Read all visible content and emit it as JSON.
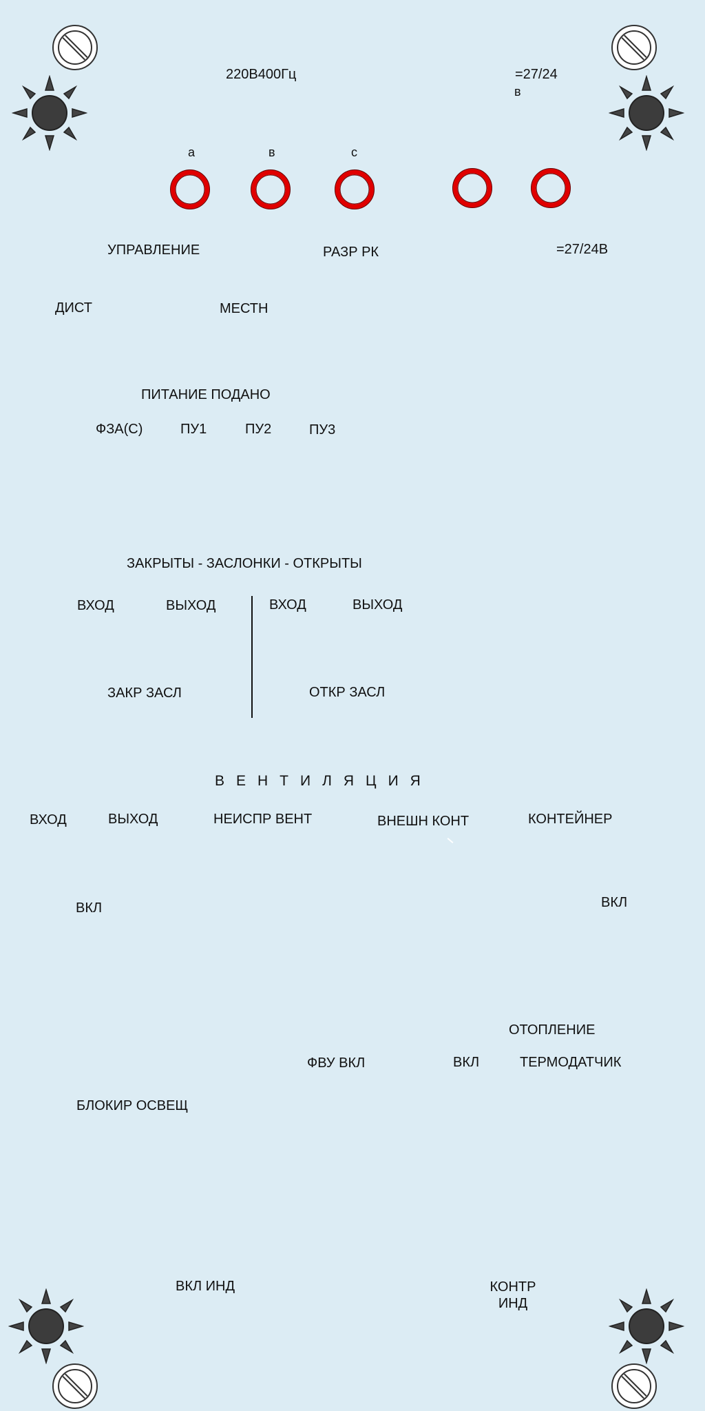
{
  "colors": {
    "background": "#dcecf4",
    "lamp_red": "#e00000",
    "knob_dark": "#3c3c3c",
    "knob_fill": "#444444"
  },
  "icons": {
    "corner_screw": "no-entry-screw-icon",
    "corner_knob": "sun-knob-icon",
    "lamp": "red-ring-lamp-icon"
  },
  "header": {
    "power_ac": "220В400Гц",
    "power_dc_top": "=27/24",
    "power_dc_unit": "в"
  },
  "phases": [
    "а",
    "в",
    "с"
  ],
  "row_labels": {
    "control": "УПРАВЛЕНИЕ",
    "rk_permission": "РАЗР РК",
    "dc_label": "=27/24В",
    "remote": "ДИСТ",
    "local": "МЕСТН"
  },
  "power": {
    "title": "ПИТАНИЕ ПОДАНО",
    "items": [
      "ФЗА(С)",
      "ПУ1",
      "ПУ2",
      "ПУ3"
    ]
  },
  "dampers": {
    "title": "ЗАКРЫТЫ - ЗАСЛОНКИ - ОТКРЫТЫ",
    "closed_in": "ВХОД",
    "closed_out": "ВЫХОД",
    "open_in": "ВХОД",
    "open_out": "ВЫХОД",
    "close_btn": "ЗАКР ЗАСЛ",
    "open_btn": "ОТКР ЗАСЛ"
  },
  "ventilation": {
    "title": "ВЕНТИЛЯЦИЯ",
    "in": "ВХОД",
    "out": "ВЫХОД",
    "fault": "НЕИСПР ВЕНТ",
    "ext_contact": "ВНЕШН КОНТ",
    "container": "КОНТЕЙНЕР",
    "on_left": "ВКЛ",
    "on_right": "ВКЛ"
  },
  "heating": {
    "title": "ОТОПЛЕНИЕ",
    "fvu_on": "ФВУ ВКЛ",
    "on": "ВКЛ",
    "thermo": "ТЕРМОДАТЧИК"
  },
  "lighting": {
    "block": "БЛОКИР ОСВЕЩ"
  },
  "indicators": {
    "on": "ВКЛ ИНД",
    "check_line1": "КОНТР",
    "check_line2": "ИНД"
  }
}
